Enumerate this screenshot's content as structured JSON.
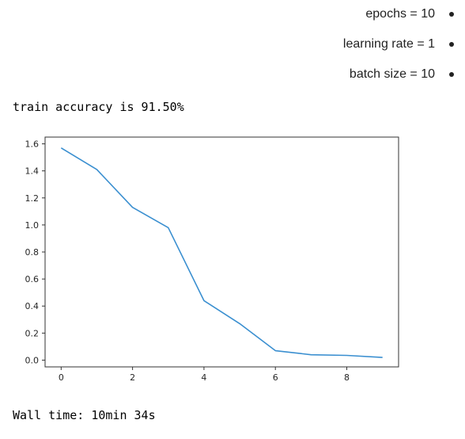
{
  "hyperparameters": [
    {
      "text": "epochs = 10"
    },
    {
      "text": "learning rate = 1"
    },
    {
      "text": "batch size = 10"
    }
  ],
  "output": {
    "train_accuracy": "train accuracy is 91.50%",
    "wall_time": "Wall time: 10min 34s"
  },
  "chart_data": {
    "type": "line",
    "title": "",
    "xlabel": "",
    "ylabel": "",
    "x": [
      0,
      1,
      2,
      3,
      4,
      5,
      6,
      7,
      8,
      9
    ],
    "series": [
      {
        "values": [
          1.57,
          1.41,
          1.13,
          0.98,
          0.44,
          0.27,
          0.07,
          0.04,
          0.035,
          0.02
        ],
        "color": "#3a8fd0"
      }
    ],
    "xlim": [
      -0.45,
      9.45
    ],
    "ylim": [
      -0.05,
      1.65
    ],
    "xticks": [
      "0",
      "2",
      "4",
      "6",
      "8"
    ],
    "yticks": [
      "0.0",
      "0.2",
      "0.4",
      "0.6",
      "0.8",
      "1.0",
      "1.2",
      "1.4",
      "1.6"
    ],
    "grid": false
  }
}
